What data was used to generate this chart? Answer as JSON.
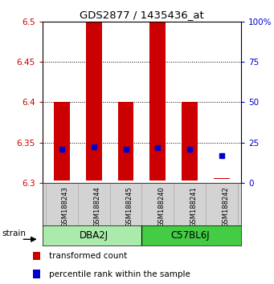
{
  "title": "GDS2877 / 1435436_at",
  "samples": [
    "GSM188243",
    "GSM188244",
    "GSM188245",
    "GSM188240",
    "GSM188241",
    "GSM188242"
  ],
  "group1_name": "DBA2J",
  "group2_name": "C57BL6J",
  "group1_color": "#AAEAAA",
  "group2_color": "#44CC44",
  "bar_bottom": [
    6.303,
    6.303,
    6.303,
    6.303,
    6.303,
    6.305
  ],
  "bar_top": [
    6.4,
    6.5,
    6.4,
    6.5,
    6.4,
    6.306
  ],
  "percentile_y": [
    6.342,
    6.345,
    6.342,
    6.344,
    6.342,
    6.334
  ],
  "ylim": [
    6.3,
    6.5
  ],
  "yticks_left": [
    6.3,
    6.35,
    6.4,
    6.45,
    6.5
  ],
  "yticks_right": [
    0,
    25,
    50,
    75,
    100
  ],
  "bar_color": "#CC0000",
  "percentile_color": "#0000CC",
  "left_tick_color": "#CC0000",
  "right_tick_color": "#0000CC",
  "background_color": "#FFFFFF",
  "sample_box_color": "#D3D3D3",
  "legend_red_label": "transformed count",
  "legend_blue_label": "percentile rank within the sample",
  "strain_label": "strain",
  "bar_width": 0.5
}
